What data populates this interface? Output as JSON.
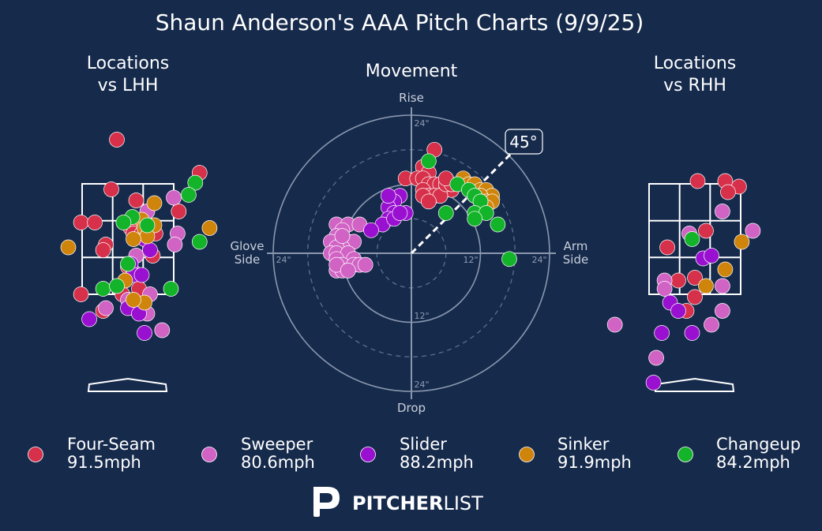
{
  "page": {
    "title": "Shaun Anderson's AAA Pitch Charts (9/9/25)",
    "background": "#162a4c"
  },
  "panels": {
    "lhh_title_line1": "Locations",
    "lhh_title_line2": "vs LHH",
    "movement_title": "Movement",
    "rhh_title_line1": "Locations",
    "rhh_title_line2": "vs RHH"
  },
  "movement_labels": {
    "top": "Rise",
    "bottom": "Drop",
    "left_line1": "Glove",
    "left_line2": "Side",
    "right_line1": "Arm",
    "right_line2": "Side",
    "tick_outer": "24\"",
    "tick_inner": "12\"",
    "arm_angle": "45°"
  },
  "colors": {
    "Four-Seam": "#d6304a",
    "Sweeper": "#d163c4",
    "Slider": "#9a10d0",
    "Sinker": "#cf840c",
    "Changeup": "#14b42a"
  },
  "legend": [
    {
      "pitch": "Four-Seam",
      "speed": "91.5mph"
    },
    {
      "pitch": "Sweeper",
      "speed": "80.6mph"
    },
    {
      "pitch": "Slider",
      "speed": "88.2mph"
    },
    {
      "pitch": "Sinker",
      "speed": "91.9mph"
    },
    {
      "pitch": "Changeup",
      "speed": "84.2mph"
    }
  ],
  "brand": {
    "logo_bold": "PITCHER",
    "logo_light": "LIST"
  },
  "chart_data": [
    {
      "type": "scatter",
      "title_lines": [
        "Locations",
        "vs LHH"
      ],
      "units": "feet (catcher's view)",
      "xlim": [
        -2.0,
        2.0
      ],
      "ylim": [
        0.0,
        4.5
      ],
      "strike_zone": {
        "x": [
          -0.83,
          0.83
        ],
        "z": [
          1.5,
          3.5
        ]
      },
      "series": [
        {
          "name": "Four-Seam",
          "points": [
            [
              -0.2,
              4.3
            ],
            [
              1.3,
              3.7
            ],
            [
              -0.3,
              3.4
            ],
            [
              0.15,
              3.2
            ],
            [
              0.92,
              3.0
            ],
            [
              -0.85,
              2.8
            ],
            [
              -0.6,
              2.8
            ],
            [
              0.05,
              2.7
            ],
            [
              0.5,
              2.6
            ],
            [
              -0.4,
              2.4
            ],
            [
              -0.45,
              2.3
            ],
            [
              0.1,
              2.6
            ],
            [
              0.25,
              2.6
            ],
            [
              0.45,
              2.2
            ],
            [
              0.0,
              2.0
            ],
            [
              0.2,
              1.6
            ],
            [
              -0.1,
              1.5
            ],
            [
              -0.85,
              1.5
            ],
            [
              -0.45,
              1.2
            ],
            [
              0.1,
              1.25
            ]
          ]
        },
        {
          "name": "Sweeper",
          "points": [
            [
              0.83,
              3.25
            ],
            [
              0.35,
              3.0
            ],
            [
              0.9,
              2.6
            ],
            [
              0.85,
              2.4
            ],
            [
              0.15,
              2.2
            ],
            [
              0.1,
              1.9
            ],
            [
              0.4,
              1.5
            ],
            [
              0.0,
              1.4
            ],
            [
              -0.4,
              1.25
            ],
            [
              0.35,
              1.15
            ],
            [
              0.62,
              0.85
            ]
          ]
        },
        {
          "name": "Slider",
          "points": [
            [
              0.3,
              2.5
            ],
            [
              0.4,
              2.3
            ],
            [
              0.05,
              2.05
            ],
            [
              0.1,
              1.85
            ],
            [
              0.25,
              1.85
            ],
            [
              0.0,
              1.25
            ],
            [
              0.2,
              1.15
            ],
            [
              -0.7,
              1.05
            ],
            [
              0.3,
              0.8
            ]
          ]
        },
        {
          "name": "Sinker",
          "points": [
            [
              0.48,
              3.15
            ],
            [
              1.48,
              2.7
            ],
            [
              -1.08,
              2.35
            ],
            [
              0.48,
              2.75
            ],
            [
              0.25,
              2.85
            ],
            [
              0.3,
              2.7
            ],
            [
              0.35,
              2.55
            ],
            [
              0.1,
              2.5
            ],
            [
              -0.05,
              1.75
            ],
            [
              0.3,
              1.35
            ],
            [
              0.1,
              1.4
            ]
          ]
        },
        {
          "name": "Changeup",
          "points": [
            [
              1.22,
              3.52
            ],
            [
              1.1,
              3.3
            ],
            [
              0.08,
              2.9
            ],
            [
              -0.08,
              2.8
            ],
            [
              0.35,
              2.75
            ],
            [
              1.3,
              2.45
            ],
            [
              0.0,
              2.05
            ],
            [
              -0.45,
              1.6
            ],
            [
              -0.2,
              1.65
            ],
            [
              0.78,
              1.6
            ]
          ]
        }
      ]
    },
    {
      "type": "scatter",
      "title": "Movement",
      "subtype": "polar",
      "xlabel": "Glove Side / Arm Side",
      "ylabel": "Drop / Rise",
      "units": "inches",
      "xlim": [
        -24,
        24
      ],
      "ylim": [
        -24,
        24
      ],
      "rings": [
        6,
        12,
        18,
        24
      ],
      "arm_angle_deg": 45,
      "series": [
        {
          "name": "Four-Seam",
          "points": [
            [
              4,
              18
            ],
            [
              2,
              15
            ],
            [
              3,
              14
            ],
            [
              -1,
              13
            ],
            [
              1,
              13
            ],
            [
              2,
              13
            ],
            [
              3,
              12
            ],
            [
              4,
              12
            ],
            [
              5,
              12
            ],
            [
              6,
              11
            ],
            [
              7,
              11
            ],
            [
              2,
              11
            ],
            [
              3,
              10
            ],
            [
              4,
              10
            ],
            [
              5,
              10
            ],
            [
              6,
              12
            ],
            [
              2,
              10
            ],
            [
              7,
              12
            ],
            [
              6,
              13
            ],
            [
              3,
              9
            ]
          ]
        },
        {
          "name": "Sweeper",
          "points": [
            [
              -13,
              5
            ],
            [
              -11,
              5
            ],
            [
              -12,
              4
            ],
            [
              -13,
              3
            ],
            [
              -14,
              2
            ],
            [
              -12,
              2
            ],
            [
              -11,
              2
            ],
            [
              -10,
              2
            ],
            [
              -12,
              1
            ],
            [
              -13,
              1
            ],
            [
              -14,
              0
            ],
            [
              -13,
              0
            ],
            [
              -11,
              0
            ],
            [
              -10,
              -1
            ],
            [
              -13,
              -1
            ],
            [
              -12,
              -2
            ],
            [
              -10,
              -2
            ],
            [
              -13,
              -3
            ],
            [
              -12,
              -3
            ],
            [
              -9,
              -2
            ],
            [
              -8,
              -2
            ],
            [
              -13,
              -2
            ],
            [
              -11,
              -3
            ],
            [
              -9,
              5
            ],
            [
              -12,
              3
            ]
          ]
        },
        {
          "name": "Slider",
          "points": [
            [
              -2,
              10
            ],
            [
              -3,
              9
            ],
            [
              -4,
              8
            ],
            [
              -3,
              7
            ],
            [
              -1,
              7
            ],
            [
              -4,
              6
            ],
            [
              -5,
              5
            ],
            [
              -7,
              4
            ],
            [
              -3,
              6
            ],
            [
              -2,
              7
            ],
            [
              -4,
              10
            ]
          ]
        },
        {
          "name": "Sinker",
          "points": [
            [
              9,
              13
            ],
            [
              10,
              12
            ],
            [
              11,
              12
            ],
            [
              12,
              11
            ],
            [
              13,
              11
            ],
            [
              14,
              10
            ],
            [
              12,
              10
            ],
            [
              13,
              9
            ],
            [
              14,
              9
            ],
            [
              13,
              8
            ],
            [
              11,
              10
            ],
            [
              12,
              9
            ]
          ]
        },
        {
          "name": "Changeup",
          "points": [
            [
              3,
              16
            ],
            [
              8,
              12
            ],
            [
              10,
              11
            ],
            [
              11,
              10
            ],
            [
              12,
              9
            ],
            [
              11,
              7
            ],
            [
              13,
              7
            ],
            [
              11,
              6
            ],
            [
              15,
              5
            ],
            [
              6,
              7
            ],
            [
              17,
              -1
            ]
          ]
        }
      ]
    },
    {
      "type": "scatter",
      "title_lines": [
        "Locations",
        "vs RHH"
      ],
      "units": "feet (catcher's view)",
      "xlim": [
        -2.0,
        2.0
      ],
      "ylim": [
        0.0,
        4.5
      ],
      "strike_zone": {
        "x": [
          -0.83,
          0.83
        ],
        "z": [
          1.5,
          3.5
        ]
      },
      "series": [
        {
          "name": "Four-Seam",
          "points": [
            [
              0.05,
              3.55
            ],
            [
              0.55,
              3.55
            ],
            [
              0.8,
              3.45
            ],
            [
              0.6,
              3.35
            ],
            [
              0.2,
              2.65
            ],
            [
              -0.5,
              2.35
            ],
            [
              -0.3,
              1.75
            ],
            [
              0.0,
              1.8
            ],
            [
              0.0,
              1.45
            ],
            [
              -0.15,
              1.2
            ]
          ]
        },
        {
          "name": "Sweeper",
          "points": [
            [
              0.5,
              3.0
            ],
            [
              1.05,
              2.65
            ],
            [
              -0.1,
              2.6
            ],
            [
              -0.55,
              1.75
            ],
            [
              -0.55,
              1.6
            ],
            [
              0.5,
              1.65
            ],
            [
              0.5,
              1.2
            ],
            [
              0.3,
              0.95
            ],
            [
              -1.45,
              0.95
            ],
            [
              -0.7,
              0.35
            ]
          ]
        },
        {
          "name": "Slider",
          "points": [
            [
              0.15,
              2.15
            ],
            [
              0.3,
              2.2
            ],
            [
              -0.45,
              1.35
            ],
            [
              -0.3,
              1.2
            ],
            [
              -0.6,
              0.8
            ],
            [
              -0.05,
              0.8
            ],
            [
              -0.75,
              -0.1
            ]
          ]
        },
        {
          "name": "Sinker",
          "points": [
            [
              0.85,
              2.45
            ],
            [
              0.55,
              1.95
            ],
            [
              0.2,
              1.65
            ]
          ]
        },
        {
          "name": "Changeup",
          "points": [
            [
              -0.05,
              2.5
            ]
          ]
        }
      ]
    }
  ]
}
